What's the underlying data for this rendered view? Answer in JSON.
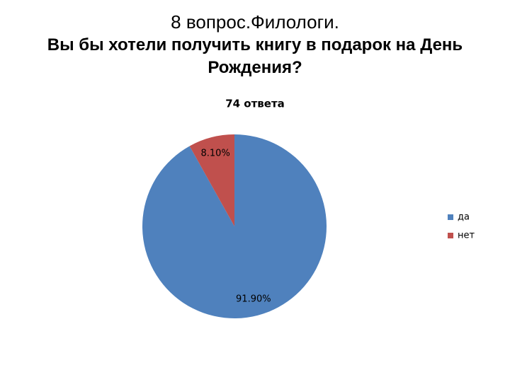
{
  "chart_data": {
    "type": "pie",
    "title": "8 вопрос.Филологи.",
    "subtitle": "Вы бы хотели получить книгу в подарок на День Рождения?",
    "chart_title": "74 ответа",
    "categories": [
      "да",
      "нет"
    ],
    "values": [
      91.9,
      8.1
    ],
    "value_labels": [
      "91.90%",
      "8.10%"
    ],
    "colors": [
      "#4f81bd",
      "#c0504d"
    ],
    "legend": "right"
  }
}
